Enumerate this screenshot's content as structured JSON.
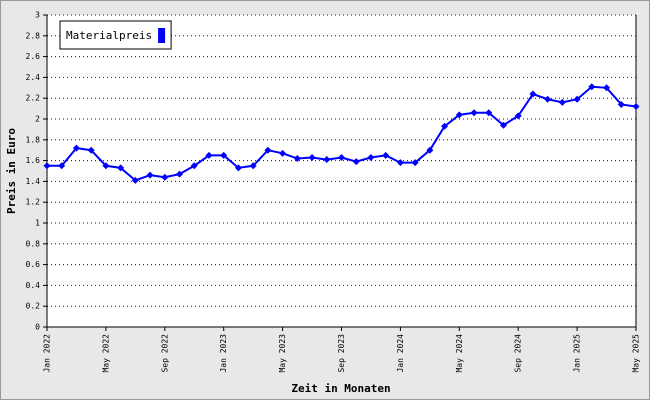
{
  "chart_data": {
    "type": "line",
    "x_label": "Zeit in Monaten",
    "y_label": "Preis in Euro",
    "categories": [
      "Jan 2022",
      null,
      null,
      null,
      "May 2022",
      null,
      null,
      null,
      "Sep 2022",
      null,
      null,
      null,
      "Jan 2023",
      null,
      null,
      null,
      "May 2023",
      null,
      null,
      null,
      "Sep 2023",
      null,
      null,
      null,
      "Jan 2024",
      null,
      null,
      null,
      "May 2024",
      null,
      null,
      null,
      "Sep 2024",
      null,
      null,
      null,
      "Jan 2025",
      null,
      null,
      null,
      "May 2025"
    ],
    "series": [
      {
        "name": "Materialpreis",
        "color": "#0000ff",
        "values": [
          1.55,
          1.55,
          1.72,
          1.7,
          1.55,
          1.53,
          1.41,
          1.46,
          1.44,
          1.47,
          1.55,
          1.65,
          1.65,
          1.53,
          1.55,
          1.7,
          1.67,
          1.62,
          1.63,
          1.61,
          1.63,
          1.59,
          1.63,
          1.65,
          1.58,
          1.58,
          1.7,
          1.93,
          2.04,
          2.06,
          2.06,
          1.94,
          2.03,
          2.24,
          2.19,
          2.16,
          2.19,
          2.31,
          2.3,
          2.14,
          2.12
        ]
      }
    ],
    "ylim": [
      0,
      3
    ],
    "yticks": [
      0,
      0.2,
      0.4,
      0.6,
      0.8,
      1,
      1.2,
      1.4,
      1.6,
      1.8,
      2,
      2.2,
      2.4,
      2.6,
      2.8,
      3
    ],
    "grid": true,
    "legend": "upper left"
  }
}
